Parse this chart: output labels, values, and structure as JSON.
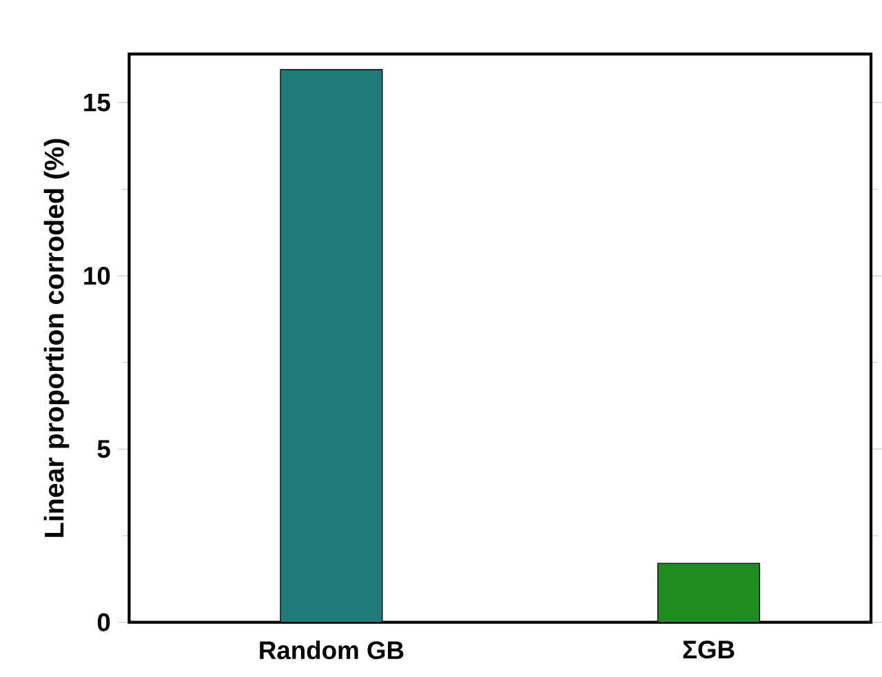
{
  "chart_data": {
    "type": "bar",
    "ylabel": "Linear proportion corroded (%)",
    "categories": [
      "Random GB",
      "ΣGB"
    ],
    "values": [
      15.95,
      1.7
    ],
    "colors": [
      "#1f7a7a",
      "#1f8c1f"
    ],
    "ylim": [
      0,
      16.4
    ],
    "yticks": [
      0,
      5,
      10,
      15
    ],
    "grid": false
  }
}
